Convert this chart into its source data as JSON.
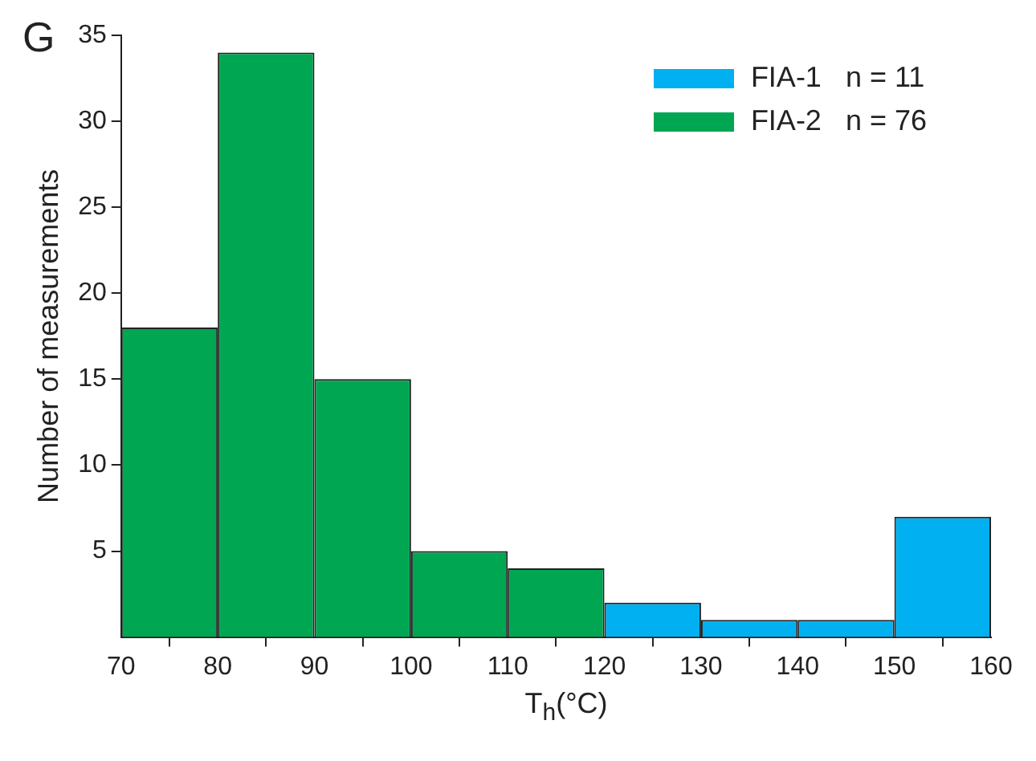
{
  "chart_data": {
    "type": "histogram",
    "xlabel": "T$_{h}$(°C)",
    "ylabel": "Number of measurements",
    "annotations": [
      "G"
    ],
    "bins": [
      70,
      80,
      90,
      100,
      110,
      120,
      130,
      140,
      150,
      160
    ],
    "series": [
      {
        "name": "FIA-1   n = 11",
        "color": "#00b0f0",
        "values": [
          null,
          null,
          null,
          null,
          null,
          2,
          1,
          1,
          7
        ]
      },
      {
        "name": "FIA-2   n = 76",
        "color": "#00a651",
        "values": [
          18,
          34,
          15,
          5,
          4,
          null,
          null,
          null,
          null
        ]
      }
    ],
    "xlim": [
      70,
      160
    ],
    "xticks": [
      70,
      80,
      90,
      100,
      110,
      120,
      130,
      140,
      150,
      160
    ],
    "ylim": [
      0,
      35
    ],
    "yticks": [
      5,
      10,
      15,
      20,
      25,
      30,
      35
    ],
    "grid": false,
    "legend": "top right"
  }
}
